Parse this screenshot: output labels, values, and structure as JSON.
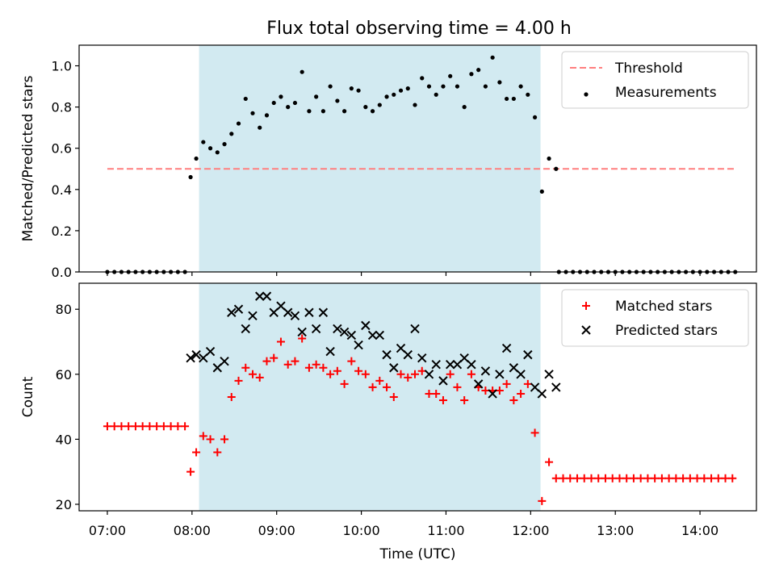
{
  "figure_title": "Flux total observing time = 4.00 h",
  "colors": {
    "highlight": "#add8e6",
    "threshold": "#ff7f7f",
    "measurements": "#000000",
    "matched": "#ff0000",
    "predicted": "#000000"
  },
  "chart_data": [
    {
      "type": "scatter",
      "title": "Flux total observing time = 4.00 h",
      "xlabel": "",
      "ylabel": "Matched/Predicted stars",
      "x_unit": "time (UTC)",
      "xlim": [
        "06:40",
        "14:40"
      ],
      "ylim": [
        0,
        1.1
      ],
      "yticks": [
        0.0,
        0.2,
        0.4,
        0.6,
        0.8,
        1.0
      ],
      "yticklabels": [
        "0.0",
        "0.2",
        "0.4",
        "0.6",
        "0.8",
        "1.0"
      ],
      "highlight_span": [
        "08:05",
        "12:07"
      ],
      "threshold": {
        "name": "Threshold",
        "value": 0.5,
        "x_range": [
          "07:00",
          "14:25"
        ],
        "style": "dashed"
      },
      "legend": {
        "placement": "top-right",
        "entries": [
          "Threshold",
          "Measurements"
        ]
      },
      "series": [
        {
          "name": "Measurements",
          "marker": "dot",
          "points": [
            [
              "07:00",
              0
            ],
            [
              "07:05",
              0
            ],
            [
              "07:10",
              0
            ],
            [
              "07:15",
              0
            ],
            [
              "07:20",
              0
            ],
            [
              "07:25",
              0
            ],
            [
              "07:30",
              0
            ],
            [
              "07:35",
              0
            ],
            [
              "07:40",
              0
            ],
            [
              "07:45",
              0
            ],
            [
              "07:50",
              0
            ],
            [
              "07:55",
              0
            ],
            [
              "07:59",
              0.46
            ],
            [
              "08:03",
              0.55
            ],
            [
              "08:08",
              0.63
            ],
            [
              "08:13",
              0.6
            ],
            [
              "08:18",
              0.58
            ],
            [
              "08:23",
              0.62
            ],
            [
              "08:28",
              0.67
            ],
            [
              "08:33",
              0.72
            ],
            [
              "08:38",
              0.84
            ],
            [
              "08:43",
              0.77
            ],
            [
              "08:48",
              0.7
            ],
            [
              "08:53",
              0.76
            ],
            [
              "08:58",
              0.82
            ],
            [
              "09:03",
              0.85
            ],
            [
              "09:08",
              0.8
            ],
            [
              "09:13",
              0.82
            ],
            [
              "09:18",
              0.97
            ],
            [
              "09:23",
              0.78
            ],
            [
              "09:28",
              0.85
            ],
            [
              "09:33",
              0.78
            ],
            [
              "09:38",
              0.9
            ],
            [
              "09:43",
              0.83
            ],
            [
              "09:48",
              0.78
            ],
            [
              "09:53",
              0.89
            ],
            [
              "09:58",
              0.88
            ],
            [
              "10:03",
              0.8
            ],
            [
              "10:08",
              0.78
            ],
            [
              "10:13",
              0.81
            ],
            [
              "10:18",
              0.85
            ],
            [
              "10:23",
              0.86
            ],
            [
              "10:28",
              0.88
            ],
            [
              "10:33",
              0.89
            ],
            [
              "10:38",
              0.81
            ],
            [
              "10:43",
              0.94
            ],
            [
              "10:48",
              0.9
            ],
            [
              "10:53",
              0.86
            ],
            [
              "10:58",
              0.9
            ],
            [
              "11:03",
              0.95
            ],
            [
              "11:08",
              0.9
            ],
            [
              "11:13",
              0.8
            ],
            [
              "11:18",
              0.96
            ],
            [
              "11:23",
              0.98
            ],
            [
              "11:28",
              0.9
            ],
            [
              "11:33",
              1.04
            ],
            [
              "11:38",
              0.92
            ],
            [
              "11:43",
              0.84
            ],
            [
              "11:48",
              0.84
            ],
            [
              "11:53",
              0.9
            ],
            [
              "11:58",
              0.86
            ],
            [
              "12:03",
              0.75
            ],
            [
              "12:08",
              0.39
            ],
            [
              "12:13",
              0.55
            ],
            [
              "12:18",
              0.5
            ],
            [
              "12:20",
              0
            ],
            [
              "12:25",
              0
            ],
            [
              "12:30",
              0
            ],
            [
              "12:35",
              0
            ],
            [
              "12:40",
              0
            ],
            [
              "12:45",
              0
            ],
            [
              "12:50",
              0
            ],
            [
              "12:55",
              0
            ],
            [
              "13:00",
              0
            ],
            [
              "13:05",
              0
            ],
            [
              "13:10",
              0
            ],
            [
              "13:15",
              0
            ],
            [
              "13:20",
              0
            ],
            [
              "13:25",
              0
            ],
            [
              "13:30",
              0
            ],
            [
              "13:35",
              0
            ],
            [
              "13:40",
              0
            ],
            [
              "13:45",
              0
            ],
            [
              "13:50",
              0
            ],
            [
              "13:55",
              0
            ],
            [
              "14:00",
              0
            ],
            [
              "14:05",
              0
            ],
            [
              "14:10",
              0
            ],
            [
              "14:15",
              0
            ],
            [
              "14:20",
              0
            ],
            [
              "14:25",
              0
            ]
          ]
        }
      ]
    },
    {
      "type": "scatter",
      "xlabel": "Time (UTC)",
      "ylabel": "Count",
      "xlim": [
        "06:40",
        "14:40"
      ],
      "ylim": [
        18,
        88
      ],
      "yticks": [
        20,
        40,
        60,
        80
      ],
      "yticklabels": [
        "20",
        "40",
        "60",
        "80"
      ],
      "xticks": [
        "07:00",
        "08:00",
        "09:00",
        "10:00",
        "11:00",
        "12:00",
        "13:00",
        "14:00"
      ],
      "highlight_span": [
        "08:05",
        "12:07"
      ],
      "legend": {
        "placement": "top-right",
        "entries": [
          "Matched stars",
          "Predicted stars"
        ]
      },
      "series": [
        {
          "name": "Matched stars",
          "marker": "plus",
          "points": [
            [
              "07:00",
              44
            ],
            [
              "07:05",
              44
            ],
            [
              "07:10",
              44
            ],
            [
              "07:15",
              44
            ],
            [
              "07:20",
              44
            ],
            [
              "07:25",
              44
            ],
            [
              "07:30",
              44
            ],
            [
              "07:35",
              44
            ],
            [
              "07:40",
              44
            ],
            [
              "07:45",
              44
            ],
            [
              "07:50",
              44
            ],
            [
              "07:55",
              44
            ],
            [
              "07:59",
              30
            ],
            [
              "08:03",
              36
            ],
            [
              "08:08",
              41
            ],
            [
              "08:13",
              40
            ],
            [
              "08:18",
              36
            ],
            [
              "08:23",
              40
            ],
            [
              "08:28",
              53
            ],
            [
              "08:33",
              58
            ],
            [
              "08:38",
              62
            ],
            [
              "08:43",
              60
            ],
            [
              "08:48",
              59
            ],
            [
              "08:53",
              64
            ],
            [
              "08:58",
              65
            ],
            [
              "09:03",
              70
            ],
            [
              "09:08",
              63
            ],
            [
              "09:13",
              64
            ],
            [
              "09:18",
              71
            ],
            [
              "09:23",
              62
            ],
            [
              "09:28",
              63
            ],
            [
              "09:33",
              62
            ],
            [
              "09:38",
              60
            ],
            [
              "09:43",
              61
            ],
            [
              "09:48",
              57
            ],
            [
              "09:53",
              64
            ],
            [
              "09:58",
              61
            ],
            [
              "10:03",
              60
            ],
            [
              "10:08",
              56
            ],
            [
              "10:13",
              58
            ],
            [
              "10:18",
              56
            ],
            [
              "10:23",
              53
            ],
            [
              "10:28",
              60
            ],
            [
              "10:33",
              59
            ],
            [
              "10:38",
              60
            ],
            [
              "10:43",
              61
            ],
            [
              "10:48",
              54
            ],
            [
              "10:53",
              54
            ],
            [
              "10:58",
              52
            ],
            [
              "11:03",
              60
            ],
            [
              "11:08",
              56
            ],
            [
              "11:13",
              52
            ],
            [
              "11:18",
              60
            ],
            [
              "11:23",
              56
            ],
            [
              "11:28",
              55
            ],
            [
              "11:33",
              55
            ],
            [
              "11:38",
              55
            ],
            [
              "11:43",
              57
            ],
            [
              "11:48",
              52
            ],
            [
              "11:53",
              54
            ],
            [
              "11:58",
              57
            ],
            [
              "12:03",
              42
            ],
            [
              "12:08",
              21
            ],
            [
              "12:13",
              33
            ],
            [
              "12:18",
              28
            ],
            [
              "12:23",
              28
            ],
            [
              "12:28",
              28
            ],
            [
              "12:33",
              28
            ],
            [
              "12:38",
              28
            ],
            [
              "12:43",
              28
            ],
            [
              "12:48",
              28
            ],
            [
              "12:53",
              28
            ],
            [
              "12:58",
              28
            ],
            [
              "13:03",
              28
            ],
            [
              "13:08",
              28
            ],
            [
              "13:13",
              28
            ],
            [
              "13:18",
              28
            ],
            [
              "13:23",
              28
            ],
            [
              "13:28",
              28
            ],
            [
              "13:33",
              28
            ],
            [
              "13:38",
              28
            ],
            [
              "13:43",
              28
            ],
            [
              "13:48",
              28
            ],
            [
              "13:53",
              28
            ],
            [
              "13:58",
              28
            ],
            [
              "14:03",
              28
            ],
            [
              "14:08",
              28
            ],
            [
              "14:13",
              28
            ],
            [
              "14:18",
              28
            ],
            [
              "14:23",
              28
            ]
          ]
        },
        {
          "name": "Predicted stars",
          "marker": "x",
          "points": [
            [
              "07:59",
              65
            ],
            [
              "08:03",
              66
            ],
            [
              "08:08",
              65
            ],
            [
              "08:13",
              67
            ],
            [
              "08:18",
              62
            ],
            [
              "08:23",
              64
            ],
            [
              "08:28",
              79
            ],
            [
              "08:33",
              80
            ],
            [
              "08:38",
              74
            ],
            [
              "08:43",
              78
            ],
            [
              "08:48",
              84
            ],
            [
              "08:53",
              84
            ],
            [
              "08:58",
              79
            ],
            [
              "09:03",
              81
            ],
            [
              "09:08",
              79
            ],
            [
              "09:13",
              78
            ],
            [
              "09:18",
              73
            ],
            [
              "09:23",
              79
            ],
            [
              "09:28",
              74
            ],
            [
              "09:33",
              79
            ],
            [
              "09:38",
              67
            ],
            [
              "09:43",
              74
            ],
            [
              "09:48",
              73
            ],
            [
              "09:53",
              72
            ],
            [
              "09:58",
              69
            ],
            [
              "10:03",
              75
            ],
            [
              "10:08",
              72
            ],
            [
              "10:13",
              72
            ],
            [
              "10:18",
              66
            ],
            [
              "10:23",
              62
            ],
            [
              "10:28",
              68
            ],
            [
              "10:33",
              66
            ],
            [
              "10:38",
              74
            ],
            [
              "10:43",
              65
            ],
            [
              "10:48",
              60
            ],
            [
              "10:53",
              63
            ],
            [
              "10:58",
              58
            ],
            [
              "11:03",
              63
            ],
            [
              "11:08",
              63
            ],
            [
              "11:13",
              65
            ],
            [
              "11:18",
              63
            ],
            [
              "11:23",
              57
            ],
            [
              "11:28",
              61
            ],
            [
              "11:33",
              54
            ],
            [
              "11:38",
              60
            ],
            [
              "11:43",
              68
            ],
            [
              "11:48",
              62
            ],
            [
              "11:53",
              60
            ],
            [
              "11:58",
              66
            ],
            [
              "12:03",
              56
            ],
            [
              "12:08",
              54
            ],
            [
              "12:13",
              60
            ],
            [
              "12:18",
              56
            ]
          ]
        }
      ]
    }
  ]
}
